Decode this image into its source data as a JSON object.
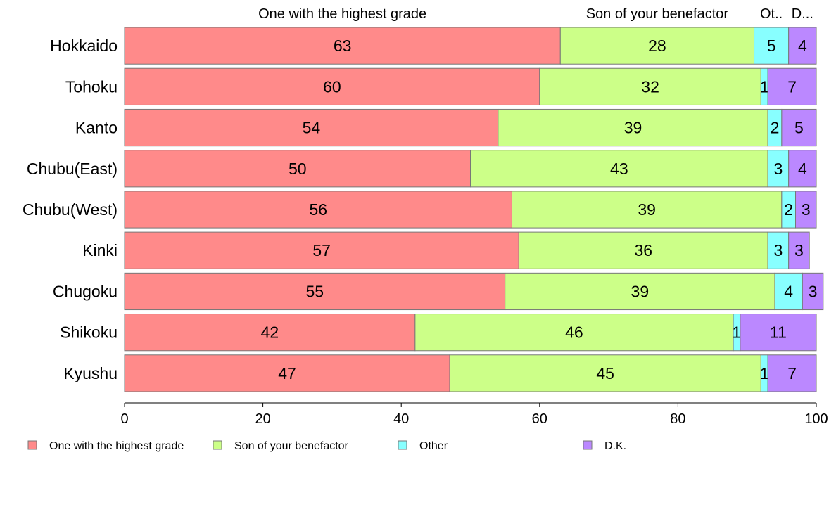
{
  "chart_data": {
    "type": "bar",
    "orientation": "horizontal",
    "stacked": true,
    "categories": [
      "Hokkaido",
      "Tohoku",
      "Kanto",
      "Chubu(East)",
      "Chubu(West)",
      "Kinki",
      "Chugoku",
      "Shikoku",
      "Kyushu"
    ],
    "series": [
      {
        "name": "One with the highest grade",
        "short_label": "One with the highest grade",
        "color": "#FF8A8A",
        "values": [
          63,
          60,
          54,
          50,
          56,
          57,
          55,
          42,
          47
        ]
      },
      {
        "name": "Son of your benefactor",
        "short_label": "Son of your benefactor",
        "color": "#CCFF88",
        "values": [
          28,
          32,
          39,
          43,
          39,
          36,
          39,
          46,
          45
        ]
      },
      {
        "name": "Other",
        "short_label": "Ot..",
        "color": "#88FFFF",
        "values": [
          5,
          1,
          2,
          3,
          2,
          3,
          4,
          1,
          1
        ]
      },
      {
        "name": "D.K.",
        "short_label": "D...",
        "color": "#BB88FF",
        "values": [
          4,
          7,
          5,
          4,
          3,
          3,
          3,
          11,
          7
        ]
      }
    ],
    "data_labels": [
      [
        "63",
        "28",
        "5",
        "4"
      ],
      [
        "60",
        "32",
        "1",
        "7"
      ],
      [
        "54",
        "39",
        "2",
        "5"
      ],
      [
        "50",
        "43",
        "3",
        "4"
      ],
      [
        "56",
        "39",
        "2",
        "3"
      ],
      [
        "57",
        "36",
        "3",
        "3"
      ],
      [
        "55",
        "39",
        "4",
        "3"
      ],
      [
        "42",
        "46",
        "1",
        "11"
      ],
      [
        "47",
        "45",
        "1",
        "7"
      ]
    ],
    "xlim": [
      0,
      100
    ],
    "x_ticks": [
      0,
      20,
      40,
      60,
      80,
      100
    ],
    "title": "",
    "xlabel": "",
    "ylabel": "",
    "grid": false,
    "legend": "bottom"
  }
}
